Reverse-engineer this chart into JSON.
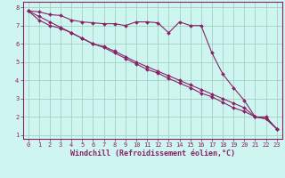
{
  "xlabel": "Windchill (Refroidissement éolien,°C)",
  "bg_color": "#cef5f0",
  "line_color": "#882266",
  "grid_color": "#99ccbb",
  "xlim": [
    -0.5,
    23.5
  ],
  "ylim": [
    0.8,
    8.3
  ],
  "x_ticks": [
    0,
    1,
    2,
    3,
    4,
    5,
    6,
    7,
    8,
    9,
    10,
    11,
    12,
    13,
    14,
    15,
    16,
    17,
    18,
    19,
    20,
    21,
    22,
    23
  ],
  "y_ticks": [
    1,
    2,
    3,
    4,
    5,
    6,
    7,
    8
  ],
  "line1_x": [
    0,
    1,
    2,
    3,
    4,
    5,
    6,
    7,
    8,
    9,
    10,
    11,
    12,
    13,
    14,
    15,
    16,
    17,
    18,
    19,
    20,
    21,
    22,
    23
  ],
  "line1_y": [
    7.8,
    7.75,
    7.6,
    7.55,
    7.3,
    7.2,
    7.15,
    7.1,
    7.1,
    7.0,
    7.2,
    7.2,
    7.15,
    6.6,
    7.2,
    7.0,
    7.0,
    5.5,
    4.35,
    3.6,
    2.9,
    2.0,
    2.0,
    1.35
  ],
  "line2_x": [
    0,
    1,
    2,
    3,
    4,
    5,
    6,
    7,
    8,
    9,
    10,
    11,
    12,
    13,
    14,
    15,
    16,
    17,
    18,
    19,
    20,
    21,
    22,
    23
  ],
  "line2_y": [
    7.8,
    7.5,
    7.2,
    6.9,
    6.6,
    6.3,
    6.0,
    5.85,
    5.6,
    5.3,
    5.0,
    4.75,
    4.5,
    4.25,
    4.0,
    3.75,
    3.5,
    3.25,
    3.0,
    2.75,
    2.5,
    2.0,
    1.9,
    1.35
  ],
  "line3_x": [
    0,
    1,
    2,
    3,
    4,
    5,
    6,
    7,
    8,
    9,
    10,
    11,
    12,
    13,
    14,
    15,
    16,
    17,
    18,
    19,
    20,
    21,
    22,
    23
  ],
  "line3_y": [
    7.8,
    7.3,
    7.0,
    6.85,
    6.6,
    6.3,
    6.0,
    5.8,
    5.5,
    5.2,
    4.9,
    4.6,
    4.4,
    4.1,
    3.85,
    3.6,
    3.3,
    3.1,
    2.8,
    2.5,
    2.3,
    2.0,
    1.9,
    1.35
  ],
  "marker": "D",
  "markersize": 2.0,
  "linewidth": 0.8,
  "tick_fontsize": 5.0,
  "xlabel_fontsize": 6.0,
  "spine_color": "#882266"
}
